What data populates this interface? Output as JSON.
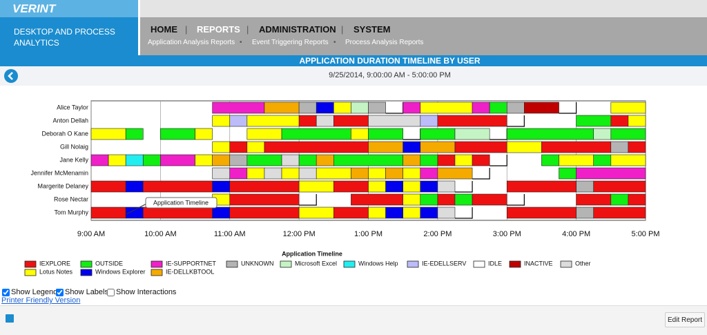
{
  "header": {
    "logo": "VERINT",
    "product": "DESKTOP AND PROCESS ANALYTICS",
    "nav": [
      "HOME",
      "REPORTS",
      "ADMINISTRATION",
      "SYSTEM"
    ],
    "subnav": [
      "Application Analysis Reports",
      "Event Triggering Reports",
      "Process Analysis Reports"
    ]
  },
  "report": {
    "title": "APPLICATION DURATION TIMELINE BY USER",
    "date_range": "9/25/2014, 9:00:00 AM - 5:00:00 PM",
    "options": [
      {
        "label": "Show Legend",
        "checked": true
      },
      {
        "label": "Show Labels",
        "checked": true
      },
      {
        "label": "Show Interactions",
        "checked": false
      }
    ],
    "printer_link": "Printer Friendly Version",
    "edit_button": "Edit Report"
  },
  "chart_data": {
    "type": "timeline",
    "annotation": "Application Timeline",
    "legend_title": "Application Timeline",
    "xlim": [
      9,
      17
    ],
    "xticks": [
      {
        "value": 9,
        "label": "9:00 AM"
      },
      {
        "value": 10,
        "label": "10:00 AM"
      },
      {
        "value": 11,
        "label": "11:00 AM"
      },
      {
        "value": 12,
        "label": "12:00 PM"
      },
      {
        "value": 13,
        "label": "1:00 PM"
      },
      {
        "value": 14,
        "label": "2:00 PM"
      },
      {
        "value": 15,
        "label": "3:00 PM"
      },
      {
        "value": 16,
        "label": "4:00 PM"
      },
      {
        "value": 17,
        "label": "5:00 PM"
      }
    ],
    "legend": [
      {
        "name": "IEXPLORE",
        "color": "#ee1111"
      },
      {
        "name": "OUTSIDE",
        "color": "#11ee11"
      },
      {
        "name": "IE-SUPPORTNET",
        "color": "#f020c8"
      },
      {
        "name": "UNKNOWN",
        "color": "#b4b4b4"
      },
      {
        "name": "Microsoft Excel",
        "color": "#c4f4c4"
      },
      {
        "name": "Windows Help",
        "color": "#22eef0"
      },
      {
        "name": "IE-EDELLSERV",
        "color": "#bcbcf8"
      },
      {
        "name": "IDLE",
        "color": "#ffffff"
      },
      {
        "name": "INACTIVE",
        "color": "#c00000"
      },
      {
        "name": "Other",
        "color": "#dcdcdc"
      },
      {
        "name": "Lotus Notes",
        "color": "#ffff00"
      },
      {
        "name": "Windows Explorer",
        "color": "#0000ee"
      },
      {
        "name": "IE-DELLKBTOOL",
        "color": "#f5aa00"
      }
    ],
    "categories": [
      "Alice Taylor",
      "Anton Dellah",
      "Deborah O Kane",
      "Gill Nolaig",
      "Jane Kelly",
      "Jennifer McMenamin",
      "Margerite Delaney",
      "Rose Nectar",
      "Tom Murphy"
    ],
    "segments": [
      [
        [
          10.75,
          11.5,
          "IE-SUPPORTNET"
        ],
        [
          11.5,
          12,
          "IE-DELLKBTOOL"
        ],
        [
          12,
          12.25,
          "UNKNOWN"
        ],
        [
          12.25,
          12.5,
          "Windows Explorer"
        ],
        [
          12.5,
          12.75,
          "Lotus Notes"
        ],
        [
          12.75,
          13,
          "Microsoft Excel"
        ],
        [
          13,
          13.25,
          "UNKNOWN"
        ],
        [
          13.25,
          13.5,
          "IDLE"
        ],
        [
          13.5,
          13.75,
          "IE-SUPPORTNET"
        ],
        [
          13.75,
          14.5,
          "Lotus Notes"
        ],
        [
          14.5,
          14.75,
          "IE-SUPPORTNET"
        ],
        [
          14.75,
          15,
          "OUTSIDE"
        ],
        [
          15,
          15.25,
          "UNKNOWN"
        ],
        [
          15.25,
          15.75,
          "INACTIVE"
        ],
        [
          15.75,
          16,
          "IDLE"
        ],
        [
          16.5,
          17,
          "Lotus Notes"
        ]
      ],
      [
        [
          10.75,
          11,
          "Lotus Notes"
        ],
        [
          11,
          11.25,
          "IE-EDELLSERV"
        ],
        [
          11.25,
          12,
          "Lotus Notes"
        ],
        [
          12,
          12.25,
          "IEXPLORE"
        ],
        [
          12.25,
          12.5,
          "Other"
        ],
        [
          12.5,
          13,
          "IEXPLORE"
        ],
        [
          13,
          13.75,
          "Other"
        ],
        [
          13.75,
          14,
          "IE-EDELLSERV"
        ],
        [
          14,
          15,
          "IEXPLORE"
        ],
        [
          15,
          15.25,
          "IDLE"
        ],
        [
          16,
          16.5,
          "OUTSIDE"
        ],
        [
          16.5,
          16.75,
          "IEXPLORE"
        ],
        [
          16.75,
          17,
          "Lotus Notes"
        ]
      ],
      [
        [
          9,
          9.5,
          "Lotus Notes"
        ],
        [
          9.5,
          9.75,
          "OUTSIDE"
        ],
        [
          10,
          10.5,
          "OUTSIDE"
        ],
        [
          10.5,
          10.75,
          "Lotus Notes"
        ],
        [
          11.25,
          11.75,
          "Lotus Notes"
        ],
        [
          11.75,
          12.75,
          "OUTSIDE"
        ],
        [
          12.75,
          13,
          "Lotus Notes"
        ],
        [
          13,
          13.5,
          "OUTSIDE"
        ],
        [
          13.5,
          13.75,
          "IDLE"
        ],
        [
          13.75,
          14.25,
          "OUTSIDE"
        ],
        [
          14.25,
          14.75,
          "Microsoft Excel"
        ],
        [
          14.75,
          15,
          "IDLE"
        ],
        [
          15,
          16.25,
          "OUTSIDE"
        ],
        [
          16.25,
          16.5,
          "Microsoft Excel"
        ],
        [
          16.5,
          17,
          "OUTSIDE"
        ]
      ],
      [
        [
          10.75,
          11,
          "Lotus Notes"
        ],
        [
          11,
          11.25,
          "IEXPLORE"
        ],
        [
          11.25,
          11.5,
          "Lotus Notes"
        ],
        [
          11.5,
          13,
          "IEXPLORE"
        ],
        [
          13,
          13.5,
          "IE-DELLKBTOOL"
        ],
        [
          13.5,
          13.75,
          "Windows Explorer"
        ],
        [
          13.75,
          14.25,
          "IE-DELLKBTOOL"
        ],
        [
          14.25,
          15,
          "IEXPLORE"
        ],
        [
          15,
          15.5,
          "Lotus Notes"
        ],
        [
          15.5,
          16.5,
          "IEXPLORE"
        ],
        [
          16.5,
          16.75,
          "UNKNOWN"
        ],
        [
          16.75,
          17,
          "IEXPLORE"
        ]
      ],
      [
        [
          9,
          9.25,
          "IE-SUPPORTNET"
        ],
        [
          9.25,
          9.5,
          "Lotus Notes"
        ],
        [
          9.5,
          9.75,
          "Windows Help"
        ],
        [
          9.75,
          10,
          "OUTSIDE"
        ],
        [
          10,
          10.5,
          "IE-SUPPORTNET"
        ],
        [
          10.5,
          10.75,
          "Lotus Notes"
        ],
        [
          10.75,
          11,
          "IE-DELLKBTOOL"
        ],
        [
          11,
          11.25,
          "UNKNOWN"
        ],
        [
          11.25,
          11.75,
          "OUTSIDE"
        ],
        [
          11.75,
          12,
          "Other"
        ],
        [
          12,
          12.25,
          "OUTSIDE"
        ],
        [
          12.25,
          12.5,
          "IE-DELLKBTOOL"
        ],
        [
          12.5,
          13.5,
          "OUTSIDE"
        ],
        [
          13.5,
          13.75,
          "IE-DELLKBTOOL"
        ],
        [
          13.75,
          14,
          "OUTSIDE"
        ],
        [
          14,
          14.25,
          "IEXPLORE"
        ],
        [
          14.25,
          14.5,
          "Lotus Notes"
        ],
        [
          14.5,
          14.75,
          "IEXPLORE"
        ],
        [
          14.75,
          15,
          "IDLE"
        ],
        [
          15.5,
          15.75,
          "OUTSIDE"
        ],
        [
          15.75,
          16.25,
          "Lotus Notes"
        ],
        [
          16.25,
          16.5,
          "OUTSIDE"
        ],
        [
          16.5,
          17,
          "Lotus Notes"
        ]
      ],
      [
        [
          10.75,
          11,
          "Other"
        ],
        [
          11,
          11.25,
          "IE-SUPPORTNET"
        ],
        [
          11.25,
          11.5,
          "Lotus Notes"
        ],
        [
          11.5,
          11.75,
          "Other"
        ],
        [
          11.75,
          12,
          "Lotus Notes"
        ],
        [
          12,
          12.25,
          "Other"
        ],
        [
          12.25,
          12.75,
          "Lotus Notes"
        ],
        [
          12.75,
          13,
          "IE-DELLKBTOOL"
        ],
        [
          13,
          13.25,
          "Lotus Notes"
        ],
        [
          13.25,
          13.5,
          "IE-DELLKBTOOL"
        ],
        [
          13.5,
          13.75,
          "Lotus Notes"
        ],
        [
          13.75,
          14,
          "IE-SUPPORTNET"
        ],
        [
          14,
          14.5,
          "IE-DELLKBTOOL"
        ],
        [
          14.5,
          14.75,
          "IDLE"
        ],
        [
          15.75,
          16,
          "OUTSIDE"
        ],
        [
          16,
          17,
          "IE-SUPPORTNET"
        ]
      ],
      [
        [
          9,
          9.5,
          "IEXPLORE"
        ],
        [
          9.5,
          9.75,
          "Windows Explorer"
        ],
        [
          9.75,
          10.75,
          "IEXPLORE"
        ],
        [
          10.75,
          11,
          "Windows Explorer"
        ],
        [
          11,
          12,
          "IEXPLORE"
        ],
        [
          12,
          12.5,
          "Lotus Notes"
        ],
        [
          12.5,
          13,
          "IEXPLORE"
        ],
        [
          13,
          13.25,
          "Lotus Notes"
        ],
        [
          13.25,
          13.5,
          "Windows Explorer"
        ],
        [
          13.5,
          13.75,
          "Lotus Notes"
        ],
        [
          13.75,
          14,
          "Windows Explorer"
        ],
        [
          14,
          14.25,
          "Other"
        ],
        [
          14.25,
          14.5,
          "IDLE"
        ],
        [
          15,
          16,
          "IEXPLORE"
        ],
        [
          16,
          16.25,
          "UNKNOWN"
        ],
        [
          16.25,
          17,
          "IEXPLORE"
        ]
      ],
      [
        [
          10.75,
          11,
          "Lotus Notes"
        ],
        [
          11,
          12,
          "IEXPLORE"
        ],
        [
          12,
          12.25,
          "IDLE"
        ],
        [
          12.75,
          13.5,
          "IEXPLORE"
        ],
        [
          13.5,
          13.75,
          "Lotus Notes"
        ],
        [
          13.75,
          14,
          "OUTSIDE"
        ],
        [
          14,
          14.25,
          "IEXPLORE"
        ],
        [
          14.25,
          14.5,
          "OUTSIDE"
        ],
        [
          14.5,
          15,
          "IEXPLORE"
        ],
        [
          15,
          15.25,
          "IDLE"
        ],
        [
          16,
          16.5,
          "IEXPLORE"
        ],
        [
          16.5,
          16.75,
          "OUTSIDE"
        ],
        [
          16.75,
          17,
          "IEXPLORE"
        ]
      ],
      [
        [
          9,
          9.5,
          "IEXPLORE"
        ],
        [
          9.5,
          9.75,
          "Windows Explorer"
        ],
        [
          9.75,
          10.75,
          "IEXPLORE"
        ],
        [
          10.75,
          11,
          "Windows Explorer"
        ],
        [
          11,
          12,
          "IEXPLORE"
        ],
        [
          12,
          12.5,
          "Lotus Notes"
        ],
        [
          12.5,
          13,
          "IEXPLORE"
        ],
        [
          13,
          13.25,
          "Lotus Notes"
        ],
        [
          13.25,
          13.5,
          "Windows Explorer"
        ],
        [
          13.5,
          13.75,
          "Lotus Notes"
        ],
        [
          13.75,
          14,
          "Windows Explorer"
        ],
        [
          14,
          14.25,
          "Other"
        ],
        [
          14.25,
          14.5,
          "IDLE"
        ],
        [
          15,
          16,
          "IEXPLORE"
        ],
        [
          16,
          16.25,
          "UNKNOWN"
        ],
        [
          16.25,
          17,
          "IEXPLORE"
        ]
      ]
    ]
  }
}
